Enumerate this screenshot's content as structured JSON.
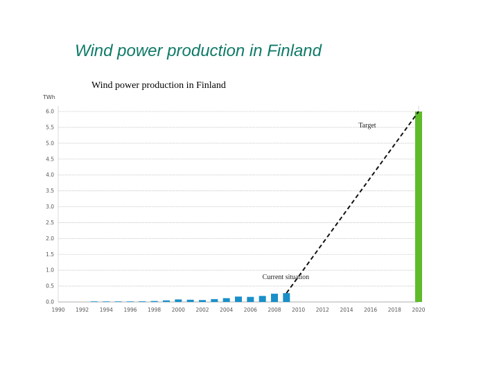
{
  "slide": {
    "title": "Wind power production in Finland"
  },
  "chart_data": {
    "type": "bar",
    "title": "Wind power production in Finland",
    "ylabel": "TWh",
    "xlabel": "",
    "ylim": [
      0,
      6.0
    ],
    "yticks": [
      "0.0",
      "0.5",
      "1.0",
      "1.5",
      "2.0",
      "2.5",
      "3.0",
      "3.5",
      "4.0",
      "4.5",
      "5.0",
      "5.5",
      "6.0"
    ],
    "xticks": [
      "1990",
      "1992",
      "1994",
      "1996",
      "1998",
      "2000",
      "2002",
      "2004",
      "2006",
      "2008",
      "2010",
      "2012",
      "2014",
      "2016",
      "2018",
      "2020"
    ],
    "xlim": [
      1990,
      2020
    ],
    "grid": true,
    "series": [
      {
        "x": [
          1993,
          1994,
          1995,
          1996,
          1997,
          1998,
          1999,
          2000,
          2001,
          2002,
          2003,
          2004,
          2005,
          2006,
          2007,
          2008,
          2009
        ],
        "values": [
          0.01,
          0.01,
          0.01,
          0.01,
          0.02,
          0.03,
          0.05,
          0.08,
          0.07,
          0.06,
          0.09,
          0.12,
          0.17,
          0.16,
          0.19,
          0.26,
          0.28
        ],
        "color": "#1a8fc9"
      },
      {
        "x": [
          2020
        ],
        "values": [
          6.0
        ],
        "color": "#5fbb2a"
      }
    ],
    "trend_line": {
      "from": [
        2009,
        0.28
      ],
      "to": [
        2020,
        6.0
      ],
      "style": "dashed"
    },
    "annotations": [
      {
        "text": "Current situation",
        "x": 2007,
        "y": 0.72
      },
      {
        "text": "Target",
        "x": 2015,
        "y": 5.5
      }
    ]
  }
}
